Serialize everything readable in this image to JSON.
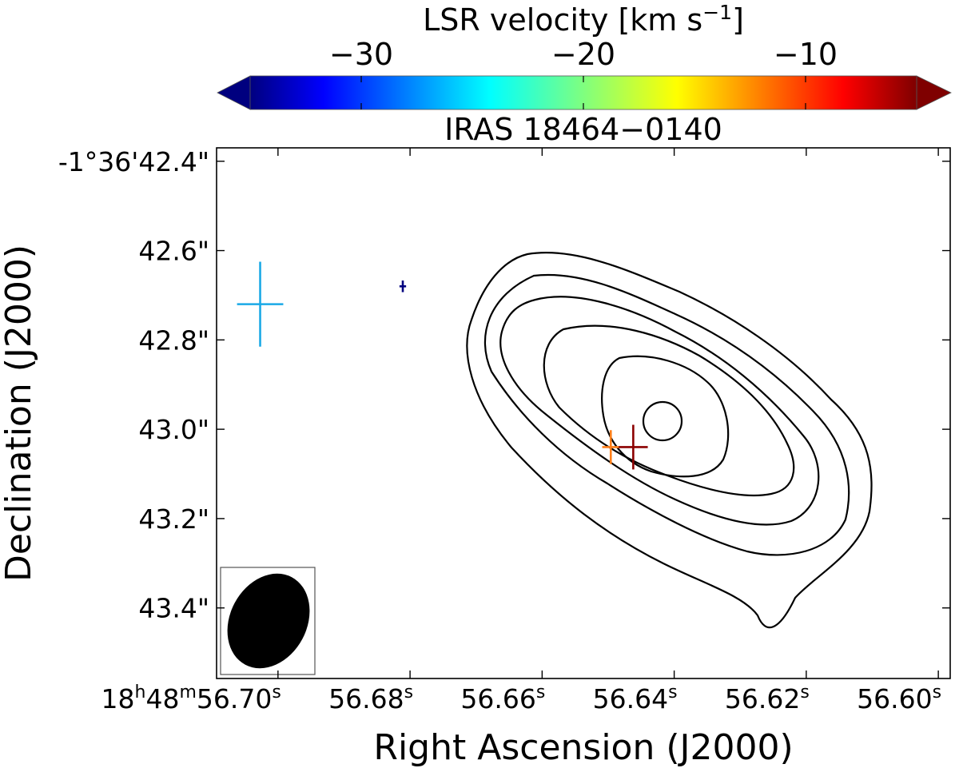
{
  "chart_data": {
    "type": "scatter",
    "title": "IRAS 18464−0140",
    "xlabel": "Right Ascension (J2000)",
    "ylabel": "Declination (J2000)",
    "colorbar": {
      "label": "LSR velocity [km s",
      "label_sup": "−1",
      "label_close": "]",
      "range": [
        -35,
        -5
      ],
      "ticks": [
        -30,
        -20,
        -10
      ],
      "tick_labels": [
        "−30",
        "−20",
        "−10"
      ],
      "colormap": "jet",
      "colors": [
        "#00007f",
        "#0000ff",
        "#007fff",
        "#00ffff",
        "#7fff7f",
        "#ffff00",
        "#ff7f00",
        "#ff0000",
        "#7f0000"
      ],
      "extend": "both"
    },
    "x_axis": {
      "units": "RA seconds of 18h48m",
      "range": [
        56.7093,
        56.5982
      ],
      "inverted": true,
      "ticks": [
        56.7,
        56.68,
        56.66,
        56.64,
        56.62,
        56.6
      ],
      "tick_labels": [
        {
          "pre": "18",
          "sup1": "h",
          "mid": "48",
          "sup2": "m",
          "main": "56.70",
          "sup3": "s"
        },
        {
          "pre": "",
          "sup1": "",
          "mid": "",
          "sup2": "",
          "main": "56.68",
          "sup3": "s"
        },
        {
          "pre": "",
          "sup1": "",
          "mid": "",
          "sup2": "",
          "main": "56.66",
          "sup3": "s"
        },
        {
          "pre": "",
          "sup1": "",
          "mid": "",
          "sup2": "",
          "main": "56.64",
          "sup3": "s"
        },
        {
          "pre": "",
          "sup1": "",
          "mid": "",
          "sup2": "",
          "main": "56.62",
          "sup3": "s"
        },
        {
          "pre": "",
          "sup1": "",
          "mid": "",
          "sup2": "",
          "main": "56.60",
          "sup3": "s"
        }
      ]
    },
    "y_axis": {
      "units": "Dec arcsec offset in -1d36m",
      "range": [
        43.558,
        42.37
      ],
      "inverted": true,
      "ticks": [
        42.4,
        42.6,
        42.8,
        43.0,
        43.2,
        43.4
      ],
      "tick_labels": [
        "-1°36'42.4\"",
        "42.6\"",
        "42.8\"",
        "43.0\"",
        "43.2\"",
        "43.4\""
      ]
    },
    "points": [
      {
        "name": "maser-light-blue",
        "ra": 56.7027,
        "dec": 42.72,
        "velocity": -29,
        "color": "#1aa9e6",
        "err_ra": 0.0035,
        "err_dec": 0.095
      },
      {
        "name": "maser-navy",
        "ra": 56.6811,
        "dec": 42.68,
        "velocity": -35,
        "color": "#00007f",
        "err_ra": 0.0005,
        "err_dec": 0.013
      },
      {
        "name": "maser-orange",
        "ra": 56.6496,
        "dec": 43.04,
        "velocity": -11,
        "color": "#ff7f1a",
        "err_ra": 0.0013,
        "err_dec": 0.038
      },
      {
        "name": "maser-dark-red",
        "ra": 56.6462,
        "dec": 43.04,
        "velocity": -6,
        "color": "#8b0000",
        "err_ra": 0.0022,
        "err_dec": 0.05
      }
    ],
    "contours": {
      "count": 6,
      "color": "#000000",
      "peak": {
        "ra": 56.6385,
        "dec": 42.97
      }
    },
    "beam": {
      "shape": "ellipse",
      "fill": "#000000"
    }
  }
}
